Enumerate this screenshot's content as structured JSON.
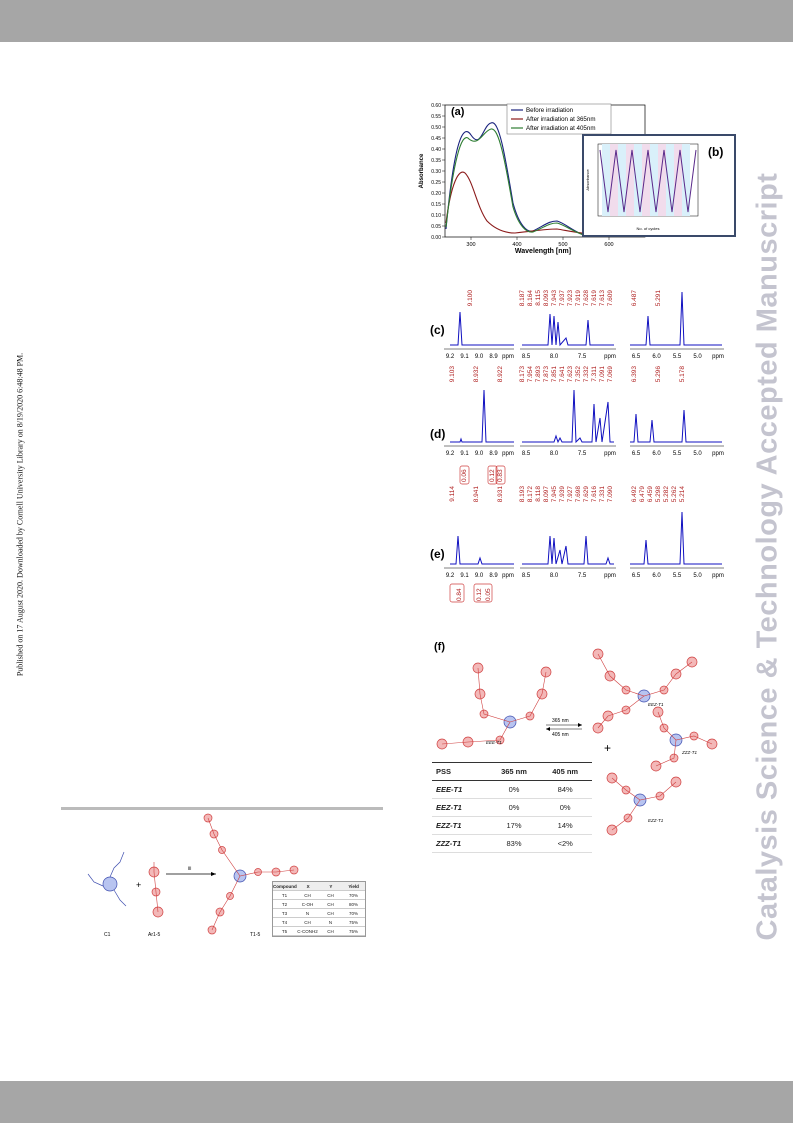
{
  "page": {
    "side_left_text": "Published on 17 August 2020. Downloaded by Cornell University Library on 8/19/2020 6:48:48 PM.",
    "side_right_text": "Catalysis Science & Technology Accepted Manuscript"
  },
  "panel_a": {
    "label": "(a)",
    "ylabel": "Absorbance",
    "xlabel": "Wavelength [nm]",
    "yticks": [
      "0.00",
      "0.05",
      "0.10",
      "0.15",
      "0.20",
      "0.25",
      "0.30",
      "0.35",
      "0.40",
      "0.45",
      "0.50",
      "0.55",
      "0.60"
    ],
    "xticks": [
      "300",
      "400",
      "500",
      "600"
    ],
    "legend": [
      "Before irradiation",
      "After irradiation at 365nm",
      "After irradiation at 405nm"
    ]
  },
  "panel_b": {
    "label": "(b)",
    "ylabel": "Absorbance",
    "xlabel": "No. of cycles",
    "yticks": [
      "0.45",
      "0.40",
      "0.35",
      "0.30",
      "0.25",
      "0.20",
      "0.15",
      "0.10"
    ],
    "xticks": [
      "0",
      "1",
      "2",
      "3",
      "4",
      "5",
      "6"
    ]
  },
  "nmr_c": {
    "label": "(c)",
    "peaks1": [
      "9.100"
    ],
    "peaks2": [
      "8.187",
      "8.164",
      "8.115",
      "8.093",
      "7.943",
      "7.937",
      "7.923",
      "7.919",
      "7.628",
      "7.619",
      "7.613",
      "7.609"
    ],
    "peaks3": [
      "6.487",
      "5.291"
    ],
    "axis1": [
      "9.2",
      "9.1",
      "9.0",
      "8.9",
      "ppm"
    ],
    "axis2": [
      "8.5",
      "8.0",
      "7.5",
      "ppm"
    ],
    "axis3": [
      "6.5",
      "6.0",
      "5.5",
      "5.0",
      "ppm"
    ]
  },
  "nmr_d": {
    "label": "(d)",
    "peaks1": [
      "9.103",
      "8.932",
      "8.922"
    ],
    "peaks2": [
      "8.173",
      "7.954",
      "7.893",
      "7.873",
      "7.851",
      "7.641",
      "7.623",
      "7.352",
      "7.332",
      "7.311",
      "7.091",
      "7.069"
    ],
    "peaks3": [
      "6.393",
      "5.296",
      "5.178"
    ],
    "axis1": [
      "9.2",
      "9.1",
      "9.0",
      "8.9",
      "ppm"
    ],
    "axis2": [
      "8.5",
      "8.0",
      "7.5",
      "ppm"
    ],
    "axis3": [
      "6.5",
      "6.0",
      "5.5",
      "5.0",
      "ppm"
    ]
  },
  "nmr_e": {
    "label": "(e)",
    "peaks1": [
      "9.114",
      "8.941",
      "8.931"
    ],
    "integ_top": [
      "0.06",
      "0.12",
      "0.83"
    ],
    "peaks2": [
      "8.193",
      "8.172",
      "8.118",
      "8.097",
      "7.945",
      "7.939",
      "7.927",
      "7.698",
      "7.629",
      "7.616",
      "7.331",
      "7.090"
    ],
    "peaks3": [
      "6.492",
      "6.479",
      "6.459",
      "5.298",
      "5.282",
      "5.262",
      "5.214"
    ],
    "integ_bottom": [
      "0.84",
      "0.12",
      "0.05"
    ],
    "axis1": [
      "9.2",
      "9.1",
      "9.0",
      "8.9",
      "ppm"
    ],
    "axis2": [
      "8.5",
      "8.0",
      "7.5",
      "ppm"
    ],
    "axis3": [
      "6.5",
      "6.0",
      "5.5",
      "5.0",
      "ppm"
    ]
  },
  "panel_f": {
    "label": "(f)",
    "arrow_top": "365 nm",
    "arrow_bottom": "405 nm",
    "plus": "+",
    "mol1": "EEE-T1",
    "mol2": "EEZ-T1",
    "mol3": "ZZZ-T1",
    "mol4": "EZZ-T1",
    "table": {
      "headers": [
        "PSS",
        "365 nm",
        "405 nm"
      ],
      "rows": [
        [
          "EEE-T1",
          "0%",
          "84%"
        ],
        [
          "EEZ-T1",
          "0%",
          "0%"
        ],
        [
          "EZZ-T1",
          "17%",
          "14%"
        ],
        [
          "ZZZ-T1",
          "83%",
          "<2%"
        ]
      ]
    }
  },
  "scheme": {
    "arrow_label": "iii",
    "label_left": "C1",
    "label_mid": "Ar1-5",
    "label_right": "T1-5",
    "table": {
      "headers": [
        "Compound",
        "X",
        "Y",
        "Yield"
      ],
      "rows": [
        [
          "T1",
          "CH",
          "CH",
          "70%"
        ],
        [
          "T2",
          "C-OH",
          "CH",
          "80%"
        ],
        [
          "T3",
          "N",
          "CH",
          "70%"
        ],
        [
          "T4",
          "CH",
          "N",
          "75%"
        ],
        [
          "T5",
          "C-CONH2",
          "CH",
          "75%"
        ]
      ]
    }
  }
}
